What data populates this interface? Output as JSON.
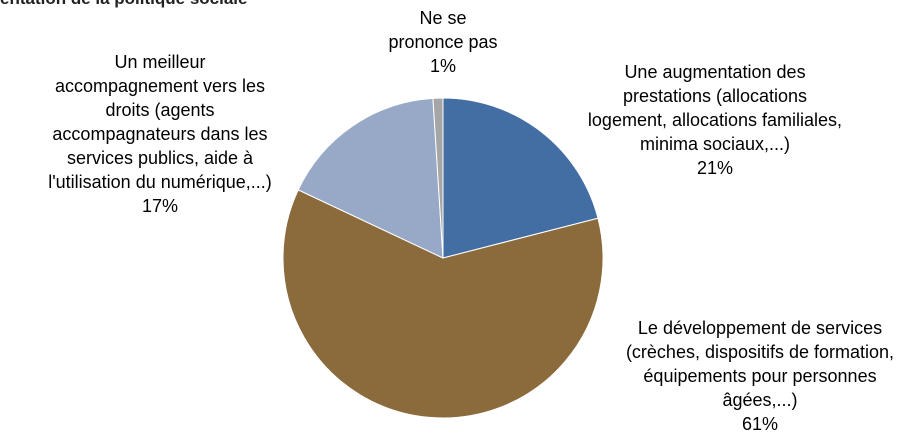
{
  "chart_data": {
    "type": "pie",
    "title": "entation de la politique sociale",
    "categories": [
      "Une augmentation des\nprestations (allocations\nlogement, allocations familiales,\nminima sociaux,...)",
      "Le développement de services\n(crèches, dispositifs de formation,\néquipements pour personnes\nâgées,...)",
      "Un meilleur\naccompagnement vers les\ndroits (agents\naccompagnateurs dans les\nservices publics, aide à\nl'utilisation du numérique,...)",
      "Ne se\nprononce pas"
    ],
    "values": [
      21,
      61,
      17,
      1
    ],
    "value_labels": [
      "21%",
      "61%",
      "17%",
      "1%"
    ],
    "colors": [
      "#436ea3",
      "#8b6a3b",
      "#97a9c7",
      "#a6a6a6"
    ]
  }
}
